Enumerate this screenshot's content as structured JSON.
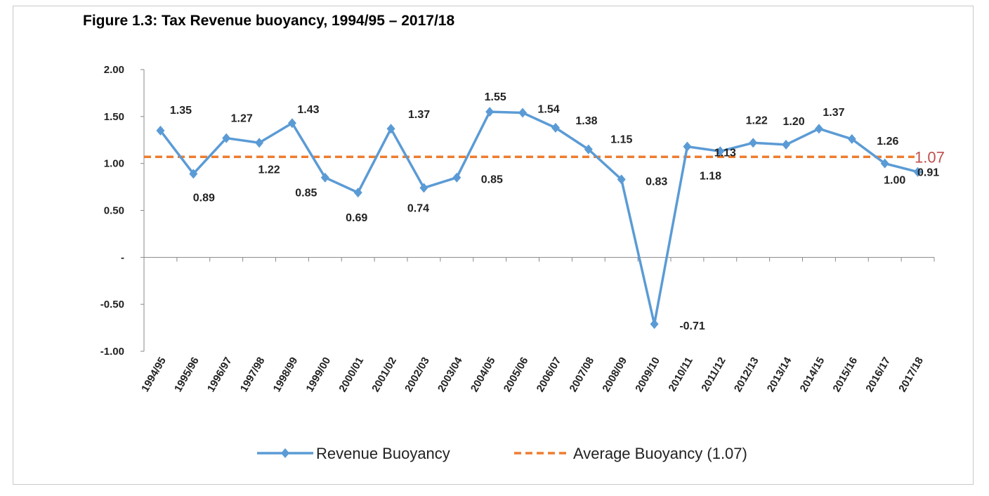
{
  "chart_data": {
    "type": "line",
    "title": "Figure 1.3: Tax Revenue buoyancy, 1994/95 – 2017/18",
    "xlabel": "",
    "ylabel": "",
    "ylim": [
      -1.0,
      2.0
    ],
    "yticks": [
      "2.00",
      "1.50",
      "1.00",
      "0.50",
      "-",
      "-0.50",
      "-1.00"
    ],
    "grid": false,
    "legend_position": "bottom",
    "categories": [
      "1994/95",
      "1995/96",
      "1996/97",
      "1997/98",
      "1998/99",
      "1999/00",
      "2000/01",
      "2001/02",
      "2002/03",
      "2003/04",
      "2004/05",
      "2005/06",
      "2006/07",
      "2007/08",
      "2008/09",
      "2009/10",
      "2010/11",
      "2011/12",
      "2012/13",
      "2013/14",
      "2014/15",
      "2015/16",
      "2016/17",
      "2017/18"
    ],
    "series": [
      {
        "name": "Revenue Buoyancy",
        "color": "#5B9BD5",
        "marker": "diamond",
        "values": [
          1.35,
          0.89,
          1.27,
          1.22,
          1.43,
          0.85,
          0.69,
          1.37,
          0.74,
          0.85,
          1.55,
          1.54,
          1.38,
          1.15,
          0.83,
          -0.71,
          1.18,
          1.13,
          1.22,
          1.2,
          1.37,
          1.26,
          1.0,
          0.91
        ],
        "labels": [
          "1.35",
          "0.89",
          "1.27",
          "1.22",
          "1.43",
          "0.85",
          "0.69",
          "1.37",
          "0.74",
          "0.85",
          "1.55",
          "1.54",
          "1.38",
          "1.15",
          "0.83",
          "-0.71",
          "1.18",
          "1.13",
          "1.22",
          "1.20",
          "1.37",
          "1.26",
          "1.00",
          "0.91"
        ]
      },
      {
        "name": "Average Buoyancy (1.07)",
        "color": "#ED7D31",
        "style": "dashed",
        "value": 1.07,
        "label": "1.07"
      }
    ]
  }
}
